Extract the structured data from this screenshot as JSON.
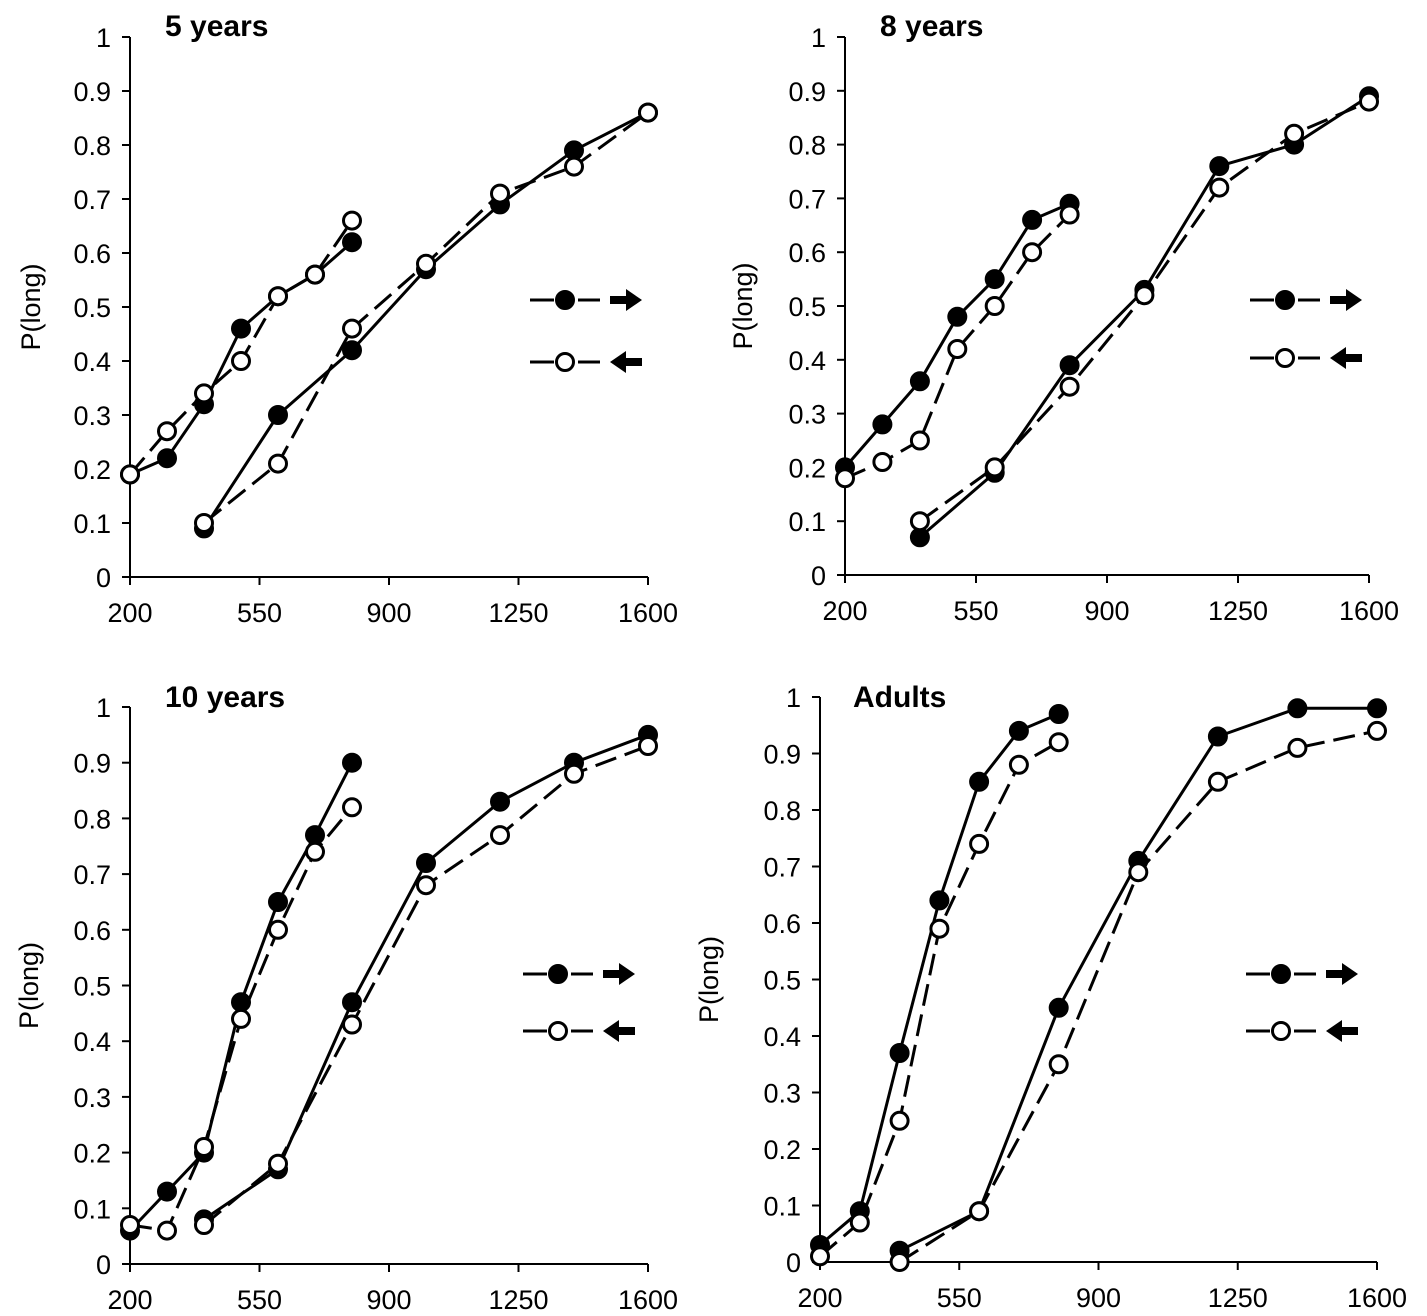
{
  "chart_data": [
    {
      "type": "line",
      "title": "5 years",
      "ylabel": "P(long)",
      "xlabel": "",
      "xlim": [
        200,
        1600
      ],
      "ylim": [
        0,
        1
      ],
      "xticks": [
        "200",
        "550",
        "900",
        "1250",
        "1600"
      ],
      "yticks": [
        "0",
        "0.1",
        "0.2",
        "0.3",
        "0.4",
        "0.5",
        "0.6",
        "0.7",
        "0.8",
        "0.9",
        "1"
      ],
      "legend_position": "right",
      "series": [
        {
          "marker": "filled",
          "line": "solid",
          "legend_arrow": "right",
          "x": [
            200,
            300,
            400,
            500,
            600,
            700,
            800
          ],
          "values": [
            0.19,
            0.22,
            0.32,
            0.46,
            0.52,
            0.56,
            0.62
          ]
        },
        {
          "marker": "open",
          "line": "dashed",
          "legend_arrow": "left",
          "x": [
            200,
            300,
            400,
            500,
            600,
            700,
            800
          ],
          "values": [
            0.19,
            0.27,
            0.34,
            0.4,
            0.52,
            0.56,
            0.66
          ]
        },
        {
          "marker": "filled",
          "line": "solid",
          "legend_arrow": "right",
          "x": [
            400,
            600,
            800,
            1000,
            1200,
            1400,
            1600
          ],
          "values": [
            0.09,
            0.3,
            0.42,
            0.57,
            0.69,
            0.79,
            0.86
          ]
        },
        {
          "marker": "open",
          "line": "dashed",
          "legend_arrow": "left",
          "x": [
            400,
            600,
            800,
            1000,
            1200,
            1400,
            1600
          ],
          "values": [
            0.1,
            0.21,
            0.46,
            0.58,
            0.71,
            0.76,
            0.86
          ]
        }
      ]
    },
    {
      "type": "line",
      "title": "8 years",
      "ylabel": "P(long)",
      "xlabel": "",
      "xlim": [
        200,
        1600
      ],
      "ylim": [
        0,
        1
      ],
      "xticks": [
        "200",
        "550",
        "900",
        "1250",
        "1600"
      ],
      "yticks": [
        "0",
        "0.1",
        "0.2",
        "0.3",
        "0.4",
        "0.5",
        "0.6",
        "0.7",
        "0.8",
        "0.9",
        "1"
      ],
      "legend_position": "right",
      "series": [
        {
          "marker": "filled",
          "line": "solid",
          "legend_arrow": "right",
          "x": [
            200,
            300,
            400,
            500,
            600,
            700,
            800
          ],
          "values": [
            0.2,
            0.28,
            0.36,
            0.48,
            0.55,
            0.66,
            0.69
          ]
        },
        {
          "marker": "open",
          "line": "dashed",
          "legend_arrow": "left",
          "x": [
            200,
            300,
            400,
            500,
            600,
            700,
            800
          ],
          "values": [
            0.18,
            0.21,
            0.25,
            0.42,
            0.5,
            0.6,
            0.67
          ]
        },
        {
          "marker": "filled",
          "line": "solid",
          "legend_arrow": "right",
          "x": [
            400,
            600,
            800,
            1000,
            1200,
            1400,
            1600
          ],
          "values": [
            0.07,
            0.19,
            0.39,
            0.53,
            0.76,
            0.8,
            0.89
          ]
        },
        {
          "marker": "open",
          "line": "dashed",
          "legend_arrow": "left",
          "x": [
            400,
            600,
            800,
            1000,
            1200,
            1400,
            1600
          ],
          "values": [
            0.1,
            0.2,
            0.35,
            0.52,
            0.72,
            0.82,
            0.88
          ]
        }
      ]
    },
    {
      "type": "line",
      "title": "10 years",
      "ylabel": "P(long)",
      "xlabel": "",
      "xlim": [
        200,
        1600
      ],
      "ylim": [
        0,
        1
      ],
      "xticks": [
        "200",
        "550",
        "900",
        "1250",
        "1600"
      ],
      "yticks": [
        "0",
        "0.1",
        "0.2",
        "0.3",
        "0.4",
        "0.5",
        "0.6",
        "0.7",
        "0.8",
        "0.9",
        "1"
      ],
      "legend_position": "right",
      "series": [
        {
          "marker": "filled",
          "line": "solid",
          "legend_arrow": "right",
          "x": [
            200,
            300,
            400,
            500,
            600,
            700,
            800
          ],
          "values": [
            0.06,
            0.13,
            0.2,
            0.47,
            0.65,
            0.77,
            0.9
          ]
        },
        {
          "marker": "open",
          "line": "dashed",
          "legend_arrow": "left",
          "x": [
            200,
            300,
            400,
            500,
            600,
            700,
            800
          ],
          "values": [
            0.07,
            0.06,
            0.21,
            0.44,
            0.6,
            0.74,
            0.82
          ]
        },
        {
          "marker": "filled",
          "line": "solid",
          "legend_arrow": "right",
          "x": [
            400,
            600,
            800,
            1000,
            1200,
            1400,
            1600
          ],
          "values": [
            0.08,
            0.17,
            0.47,
            0.72,
            0.83,
            0.9,
            0.95
          ]
        },
        {
          "marker": "open",
          "line": "dashed",
          "legend_arrow": "left",
          "x": [
            400,
            600,
            800,
            1000,
            1200,
            1400,
            1600
          ],
          "values": [
            0.07,
            0.18,
            0.43,
            0.68,
            0.77,
            0.88,
            0.93
          ]
        }
      ]
    },
    {
      "type": "line",
      "title": "Adults",
      "ylabel": "P(long)",
      "xlabel": "",
      "xlim": [
        200,
        1600
      ],
      "ylim": [
        0,
        1
      ],
      "xticks": [
        "200",
        "550",
        "900",
        "1250",
        "1600"
      ],
      "yticks": [
        "0",
        "0.1",
        "0.2",
        "0.3",
        "0.4",
        "0.5",
        "0.6",
        "0.7",
        "0.8",
        "0.9",
        "1"
      ],
      "legend_position": "right",
      "series": [
        {
          "marker": "filled",
          "line": "solid",
          "legend_arrow": "right",
          "x": [
            200,
            300,
            400,
            500,
            600,
            700,
            800
          ],
          "values": [
            0.03,
            0.09,
            0.37,
            0.64,
            0.85,
            0.94,
            0.97
          ]
        },
        {
          "marker": "open",
          "line": "dashed",
          "legend_arrow": "left",
          "x": [
            200,
            300,
            400,
            500,
            600,
            700,
            800
          ],
          "values": [
            0.01,
            0.07,
            0.25,
            0.59,
            0.74,
            0.88,
            0.92
          ]
        },
        {
          "marker": "filled",
          "line": "solid",
          "legend_arrow": "right",
          "x": [
            400,
            600,
            800,
            1000,
            1200,
            1400,
            1600
          ],
          "values": [
            0.02,
            0.09,
            0.45,
            0.71,
            0.93,
            0.98,
            0.98
          ]
        },
        {
          "marker": "open",
          "line": "dashed",
          "legend_arrow": "left",
          "x": [
            400,
            600,
            800,
            1000,
            1200,
            1400,
            1600
          ],
          "values": [
            0.0,
            0.09,
            0.35,
            0.69,
            0.85,
            0.91,
            0.94
          ]
        }
      ]
    }
  ]
}
